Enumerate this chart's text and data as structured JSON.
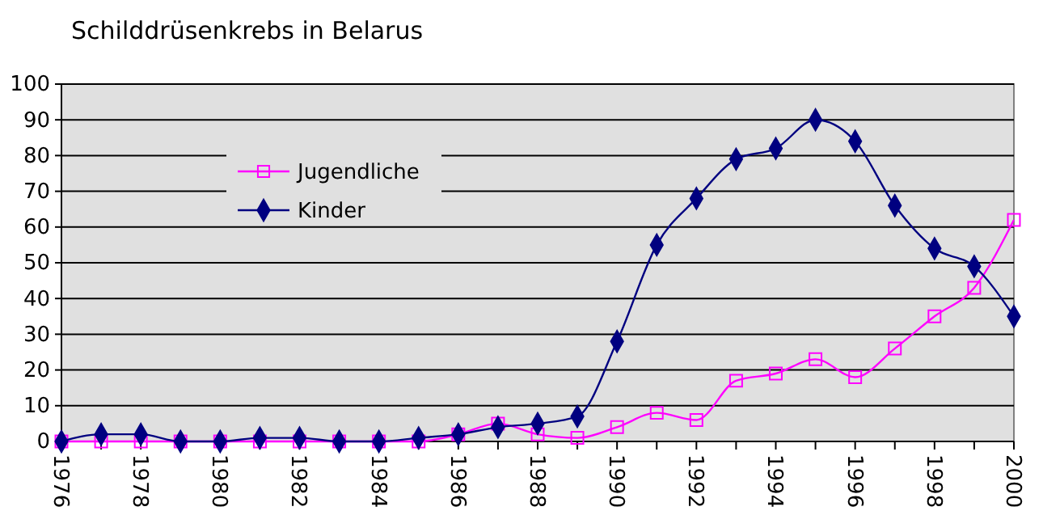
{
  "chart_data": {
    "type": "line",
    "title": "Schilddrüsenkrebs in Belarus",
    "x": [
      1976,
      1977,
      1978,
      1979,
      1980,
      1981,
      1982,
      1983,
      1984,
      1985,
      1986,
      1987,
      1988,
      1989,
      1990,
      1991,
      1992,
      1993,
      1994,
      1995,
      1996,
      1997,
      1998,
      1999,
      2000
    ],
    "series": [
      {
        "name": "Jugendliche",
        "color": "#ff00ff",
        "marker": "square",
        "values": [
          0,
          0,
          0,
          0,
          0,
          0,
          0,
          0,
          0,
          0,
          2,
          5,
          2,
          1,
          4,
          8,
          6,
          17,
          19,
          23,
          18,
          26,
          35,
          43,
          62
        ]
      },
      {
        "name": "Kinder",
        "color": "#000080",
        "marker": "diamond",
        "values": [
          0,
          2,
          2,
          0,
          0,
          1,
          1,
          0,
          0,
          1,
          2,
          4,
          5,
          7,
          28,
          55,
          68,
          79,
          82,
          90,
          84,
          66,
          54,
          49,
          35
        ]
      }
    ],
    "xlim": [
      1976,
      2000
    ],
    "xticks": [
      1976,
      {
        "value": 1977,
        "label": null
      },
      1978,
      {
        "value": 1979,
        "label": null
      },
      1980,
      {
        "value": 1981,
        "label": null
      },
      1982,
      {
        "value": 1983,
        "label": null
      },
      1984,
      {
        "value": 1985,
        "label": null
      },
      1986,
      {
        "value": 1987,
        "label": null
      },
      1988,
      {
        "value": 1989,
        "label": null
      },
      1990,
      {
        "value": 1991,
        "label": null
      },
      1992,
      {
        "value": 1993,
        "label": null
      },
      1994,
      {
        "value": 1995,
        "label": null
      },
      1996,
      {
        "value": 1997,
        "label": null
      },
      1998,
      {
        "value": 1999,
        "label": null
      },
      2000
    ],
    "ylim": [
      0,
      100
    ],
    "yticks": [
      0,
      10,
      20,
      30,
      40,
      50,
      60,
      70,
      80,
      90,
      100
    ],
    "grid": "y",
    "legend": "left"
  }
}
